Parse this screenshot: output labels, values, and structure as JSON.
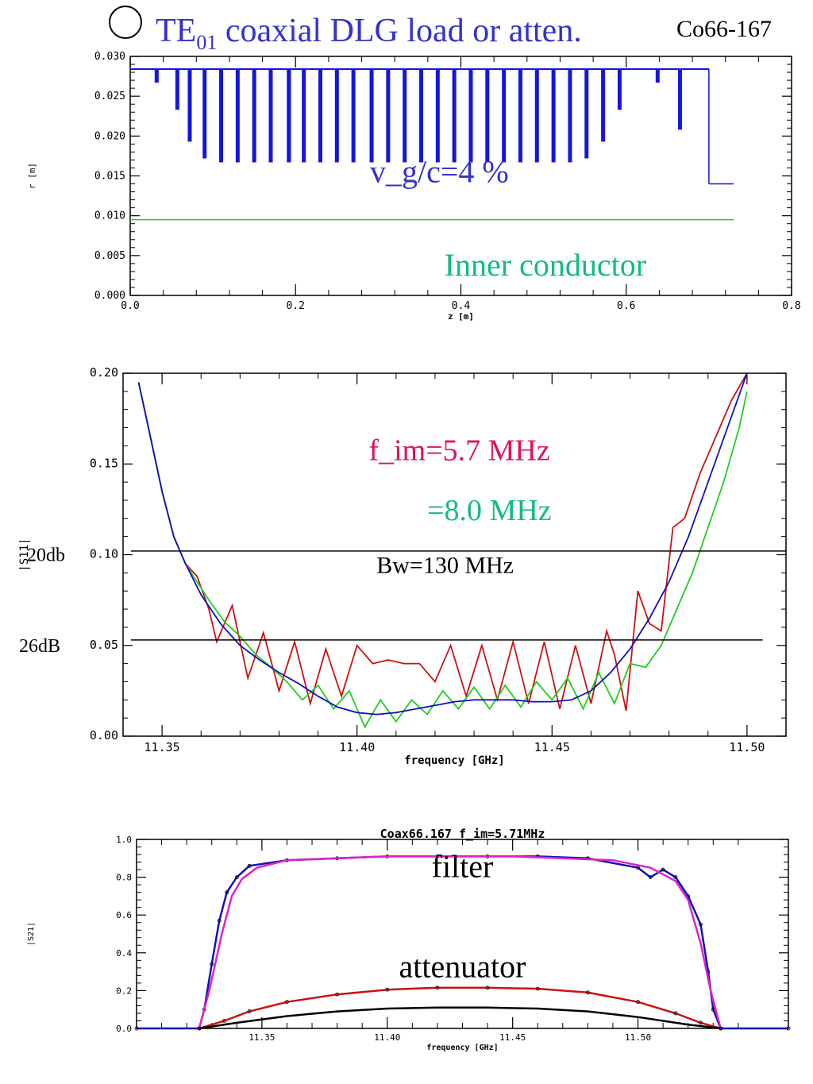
{
  "header": {
    "title_main": "TE",
    "title_sub": "01",
    "title_rest": " coaxial DLG load or atten.",
    "code": "Co66-167"
  },
  "chart_data": [
    {
      "type": "line",
      "title": "",
      "xlabel": "z [m]",
      "ylabel": "r [m]",
      "xlim": [
        0.0,
        0.8
      ],
      "ylim": [
        0.0,
        0.03
      ],
      "xticks": [
        "0.0",
        "0.2",
        "0.4",
        "0.6",
        "0.8"
      ],
      "yticks": [
        "0.000",
        "0.005",
        "0.010",
        "0.015",
        "0.020",
        "0.025",
        "0.030"
      ],
      "grid": false,
      "series": [
        {
          "kind": "iris_profile",
          "color": "#1515e0",
          "outer_radius": 0.0284,
          "end_radius": 0.014,
          "end_start": 0.7,
          "end_stop": 0.73,
          "irises": [
            {
              "z": 0.032,
              "r": 0.0267
            },
            {
              "z": 0.057,
              "r": 0.0233
            },
            {
              "z": 0.072,
              "r": 0.0193
            },
            {
              "z": 0.09,
              "r": 0.0172
            },
            {
              "z": 0.11,
              "r": 0.0167
            },
            {
              "z": 0.13,
              "r": 0.0167
            },
            {
              "z": 0.15,
              "r": 0.0167
            },
            {
              "z": 0.17,
              "r": 0.0167
            },
            {
              "z": 0.192,
              "r": 0.0167
            },
            {
              "z": 0.21,
              "r": 0.0167
            },
            {
              "z": 0.23,
              "r": 0.0167
            },
            {
              "z": 0.25,
              "r": 0.0167
            },
            {
              "z": 0.27,
              "r": 0.0167
            },
            {
              "z": 0.292,
              "r": 0.0167
            },
            {
              "z": 0.312,
              "r": 0.0167
            },
            {
              "z": 0.332,
              "r": 0.0167
            },
            {
              "z": 0.352,
              "r": 0.0167
            },
            {
              "z": 0.372,
              "r": 0.0167
            },
            {
              "z": 0.392,
              "r": 0.0167
            },
            {
              "z": 0.412,
              "r": 0.0167
            },
            {
              "z": 0.432,
              "r": 0.0167
            },
            {
              "z": 0.452,
              "r": 0.0167
            },
            {
              "z": 0.472,
              "r": 0.0167
            },
            {
              "z": 0.492,
              "r": 0.0167
            },
            {
              "z": 0.512,
              "r": 0.0167
            },
            {
              "z": 0.532,
              "r": 0.0167
            },
            {
              "z": 0.552,
              "r": 0.0172
            },
            {
              "z": 0.572,
              "r": 0.0193
            },
            {
              "z": 0.592,
              "r": 0.0233
            },
            {
              "z": 0.638,
              "r": 0.0267
            },
            {
              "z": 0.665,
              "r": 0.0208
            }
          ]
        },
        {
          "kind": "hline",
          "color": "#22cc22",
          "y": 0.0095,
          "x_start": 0.0,
          "x_stop": 0.73
        }
      ],
      "annotations": [
        {
          "text": "v_g/c=4 %",
          "x": 0.29,
          "y": 0.0142,
          "color": "#3333cc"
        },
        {
          "text": "Inner conductor",
          "x": 0.38,
          "y": 0.0025,
          "color": "#11bb88"
        }
      ]
    },
    {
      "type": "line",
      "title": "",
      "xlabel": "frequency [GHz]",
      "ylabel": "|S11|",
      "xlim": [
        11.34,
        11.51
      ],
      "ylim": [
        0.0,
        0.2
      ],
      "xticks": [
        "11.35",
        "11.40",
        "11.45",
        "11.50"
      ],
      "yticks": [
        "0.00",
        "0.05",
        "0.10",
        "0.15",
        "0.20"
      ],
      "grid": false,
      "series": [
        {
          "name": "",
          "color": "#cc1111",
          "x": [
            11.344,
            11.347,
            11.35,
            11.353,
            11.356,
            11.359,
            11.362,
            11.364,
            11.368,
            11.372,
            11.376,
            11.38,
            11.384,
            11.388,
            11.392,
            11.396,
            11.4,
            11.404,
            11.408,
            11.412,
            11.416,
            11.42,
            11.424,
            11.428,
            11.432,
            11.436,
            11.44,
            11.444,
            11.448,
            11.452,
            11.456,
            11.46,
            11.464,
            11.466,
            11.469,
            11.472,
            11.475,
            11.478,
            11.481,
            11.484,
            11.488,
            11.492,
            11.496,
            11.5
          ],
          "y": [
            0.195,
            0.165,
            0.135,
            0.11,
            0.095,
            0.088,
            0.07,
            0.052,
            0.072,
            0.032,
            0.057,
            0.025,
            0.052,
            0.018,
            0.048,
            0.022,
            0.05,
            0.04,
            0.042,
            0.04,
            0.04,
            0.03,
            0.05,
            0.022,
            0.05,
            0.02,
            0.052,
            0.018,
            0.052,
            0.015,
            0.05,
            0.018,
            0.058,
            0.045,
            0.014,
            0.08,
            0.062,
            0.058,
            0.115,
            0.12,
            0.145,
            0.165,
            0.185,
            0.2
          ]
        },
        {
          "name": "",
          "color": "#22cc22",
          "x": [
            11.344,
            11.347,
            11.35,
            11.353,
            11.356,
            11.359,
            11.362,
            11.366,
            11.37,
            11.374,
            11.378,
            11.382,
            11.386,
            11.39,
            11.394,
            11.398,
            11.402,
            11.406,
            11.41,
            11.414,
            11.418,
            11.422,
            11.426,
            11.43,
            11.434,
            11.438,
            11.442,
            11.446,
            11.45,
            11.454,
            11.458,
            11.462,
            11.466,
            11.47,
            11.474,
            11.478,
            11.482,
            11.486,
            11.49,
            11.494,
            11.498,
            11.5
          ],
          "y": [
            0.195,
            0.165,
            0.135,
            0.11,
            0.095,
            0.085,
            0.075,
            0.063,
            0.055,
            0.045,
            0.038,
            0.03,
            0.02,
            0.028,
            0.015,
            0.025,
            0.005,
            0.02,
            0.008,
            0.02,
            0.012,
            0.025,
            0.015,
            0.027,
            0.015,
            0.028,
            0.016,
            0.03,
            0.02,
            0.032,
            0.015,
            0.035,
            0.018,
            0.04,
            0.038,
            0.05,
            0.07,
            0.09,
            0.115,
            0.14,
            0.17,
            0.19
          ]
        },
        {
          "name": "",
          "color": "#1111bb",
          "x": [
            11.344,
            11.347,
            11.35,
            11.353,
            11.356,
            11.36,
            11.365,
            11.37,
            11.375,
            11.38,
            11.385,
            11.39,
            11.395,
            11.4,
            11.405,
            11.41,
            11.415,
            11.42,
            11.425,
            11.43,
            11.435,
            11.44,
            11.445,
            11.45,
            11.455,
            11.46,
            11.465,
            11.47,
            11.475,
            11.48,
            11.485,
            11.49,
            11.495,
            11.5
          ],
          "y": [
            0.195,
            0.165,
            0.135,
            0.11,
            0.095,
            0.078,
            0.062,
            0.05,
            0.042,
            0.035,
            0.029,
            0.022,
            0.016,
            0.013,
            0.012,
            0.013,
            0.015,
            0.017,
            0.019,
            0.02,
            0.02,
            0.02,
            0.019,
            0.019,
            0.02,
            0.025,
            0.035,
            0.048,
            0.065,
            0.085,
            0.11,
            0.14,
            0.17,
            0.2
          ]
        },
        {
          "kind": "hline",
          "color": "#000000",
          "y": 0.102,
          "x_start": 11.342,
          "x_stop": 11.51
        },
        {
          "kind": "hline",
          "color": "#000000",
          "y": 0.053,
          "x_start": 11.342,
          "x_stop": 11.504
        }
      ],
      "annotations": [
        {
          "text": "f_im=5.7 MHz",
          "x": 11.403,
          "y": 0.152,
          "color": "#dd1166"
        },
        {
          "text": "=8.0 MHz",
          "x": 11.418,
          "y": 0.119,
          "color": "#11bb88"
        },
        {
          "text": "Bw=130 MHz",
          "x": 11.405,
          "y": 0.09,
          "color": "#000000"
        },
        {
          "text": "20db",
          "side": "left",
          "y": 0.1,
          "color": "#000000"
        },
        {
          "text": "26dB",
          "side": "left",
          "y": 0.05,
          "color": "#000000"
        }
      ]
    },
    {
      "type": "line",
      "title": "Coax66.167 f_im=5.71MHz",
      "xlabel": "frequency [GHz]",
      "ylabel": "|S21|",
      "xlim": [
        11.3,
        11.56
      ],
      "ylim": [
        0.0,
        1.0
      ],
      "xticks": [
        "11.35",
        "11.40",
        "11.45",
        "11.50"
      ],
      "yticks": [
        "0.0",
        "0.2",
        "0.4",
        "0.6",
        "0.8",
        "1.0"
      ],
      "grid": false,
      "series": [
        {
          "name": "",
          "color": "#1111bb",
          "x": [
            11.3,
            11.325,
            11.327,
            11.33,
            11.333,
            11.336,
            11.34,
            11.345,
            11.36,
            11.38,
            11.4,
            11.42,
            11.44,
            11.46,
            11.48,
            11.5,
            11.505,
            11.51,
            11.515,
            11.52,
            11.525,
            11.528,
            11.53,
            11.533,
            11.56
          ],
          "y": [
            0.0,
            0.0,
            0.1,
            0.34,
            0.57,
            0.72,
            0.8,
            0.86,
            0.89,
            0.9,
            0.91,
            0.91,
            0.91,
            0.91,
            0.9,
            0.85,
            0.8,
            0.84,
            0.8,
            0.7,
            0.55,
            0.3,
            0.1,
            0.0,
            0.0
          ]
        },
        {
          "name": "",
          "color": "#dd22cc",
          "x": [
            11.325,
            11.329,
            11.334,
            11.338,
            11.342,
            11.348,
            11.36,
            11.4,
            11.45,
            11.49,
            11.505,
            11.515,
            11.52,
            11.525,
            11.529,
            11.533
          ],
          "y": [
            0.0,
            0.2,
            0.5,
            0.7,
            0.79,
            0.85,
            0.89,
            0.91,
            0.91,
            0.89,
            0.85,
            0.78,
            0.68,
            0.45,
            0.2,
            0.0
          ]
        },
        {
          "name": "",
          "color": "#cc1111",
          "x": [
            11.325,
            11.335,
            11.345,
            11.36,
            11.38,
            11.4,
            11.42,
            11.44,
            11.46,
            11.48,
            11.5,
            11.515,
            11.525,
            11.533
          ],
          "y": [
            0.0,
            0.04,
            0.09,
            0.14,
            0.18,
            0.205,
            0.215,
            0.215,
            0.21,
            0.19,
            0.14,
            0.08,
            0.03,
            0.0
          ]
        },
        {
          "name": "",
          "color": "#000000",
          "x": [
            11.325,
            11.34,
            11.36,
            11.38,
            11.4,
            11.42,
            11.44,
            11.46,
            11.48,
            11.5,
            11.52,
            11.533
          ],
          "y": [
            0.0,
            0.03,
            0.065,
            0.09,
            0.105,
            0.11,
            0.11,
            0.105,
            0.09,
            0.06,
            0.02,
            0.0
          ]
        }
      ],
      "annotations": [
        {
          "text": "filter",
          "x": 11.43,
          "y": 0.8,
          "color": "#000000"
        },
        {
          "text": "attenuator",
          "x": 11.43,
          "y": 0.27,
          "color": "#000000"
        }
      ]
    }
  ]
}
